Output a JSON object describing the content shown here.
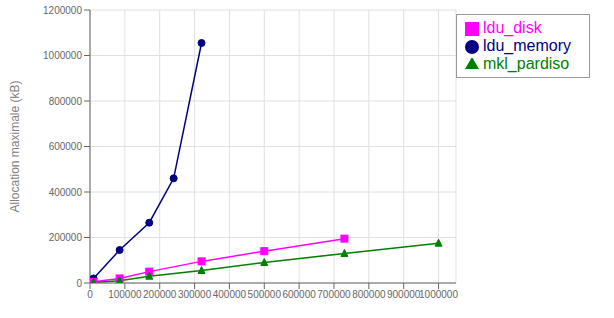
{
  "chart_data": {
    "type": "line",
    "ylabel": "Allocation maximale (kB)",
    "series": [
      {
        "name": "ldu_memory",
        "color": "#000080",
        "marker": "circle",
        "x": [
          10000,
          85000,
          170000,
          240000,
          320000
        ],
        "values": [
          20000,
          145000,
          265000,
          460000,
          1055000
        ]
      },
      {
        "name": "ldu_disk",
        "color": "#FF00FF",
        "marker": "square",
        "x": [
          10000,
          85000,
          170000,
          320000,
          500000,
          730000
        ],
        "values": [
          5000,
          20000,
          50000,
          95000,
          140000,
          195000
        ]
      },
      {
        "name": "mkl_pardiso",
        "color": "#008000",
        "marker": "triangle",
        "x": [
          10000,
          85000,
          170000,
          320000,
          500000,
          730000,
          1000000
        ],
        "values": [
          2000,
          10000,
          30000,
          55000,
          90000,
          130000,
          175000
        ]
      }
    ],
    "xlim": [
      0,
      1050000
    ],
    "ylim": [
      0,
      1200000
    ],
    "xticks": [
      0,
      100000,
      200000,
      300000,
      400000,
      500000,
      600000,
      700000,
      800000,
      900000,
      1000000
    ],
    "yticks": [
      0,
      200000,
      400000,
      600000,
      800000,
      1000000,
      1200000
    ],
    "grid": true,
    "legend": "upper right"
  }
}
